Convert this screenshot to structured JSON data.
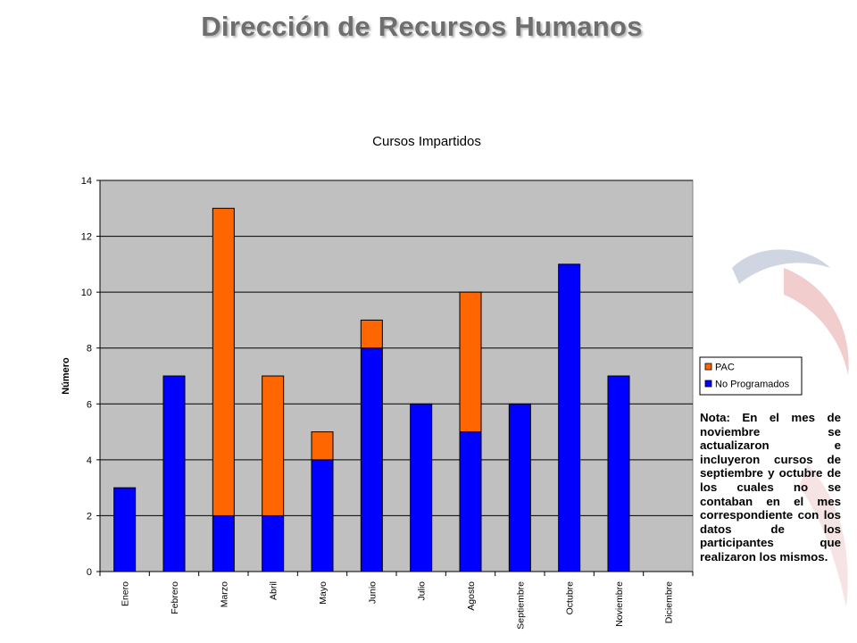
{
  "page": {
    "title": "Dirección de Recursos Humanos"
  },
  "note": "Nota: En el mes de noviembre se actualizaron e incluyeron cursos de septiembre y octubre de los cuales no se contaban en el mes correspondiente con los datos de los participantes que realizaron los mismos.",
  "colors": {
    "plot_bg": "#c0c0c0",
    "pac": "#ff6600",
    "no_programados": "#0000ff"
  },
  "chart_data": {
    "type": "bar",
    "stacked": true,
    "title": "Cursos Impartidos",
    "xlabel": "",
    "ylabel": "Número",
    "ylim": [
      0,
      14
    ],
    "yticks": [
      0,
      2,
      4,
      6,
      8,
      10,
      12,
      14
    ],
    "grid": true,
    "legend_position": "right",
    "categories": [
      "Enero",
      "Febrero",
      "Marzo",
      "Abril",
      "Mayo",
      "Junio",
      "Julio",
      "Agosto",
      "Septiembre",
      "Octubre",
      "Noviembre",
      "Diciembre"
    ],
    "series": [
      {
        "name": "No Programados",
        "color": "#0000ff",
        "values": [
          3,
          7,
          2,
          2,
          4,
          8,
          6,
          5,
          6,
          11,
          7,
          0
        ]
      },
      {
        "name": "PAC",
        "color": "#ff6600",
        "values": [
          0,
          0,
          11,
          5,
          1,
          1,
          0,
          5,
          0,
          0,
          0,
          0
        ]
      }
    ],
    "legend_order": [
      "PAC",
      "No Programados"
    ]
  }
}
